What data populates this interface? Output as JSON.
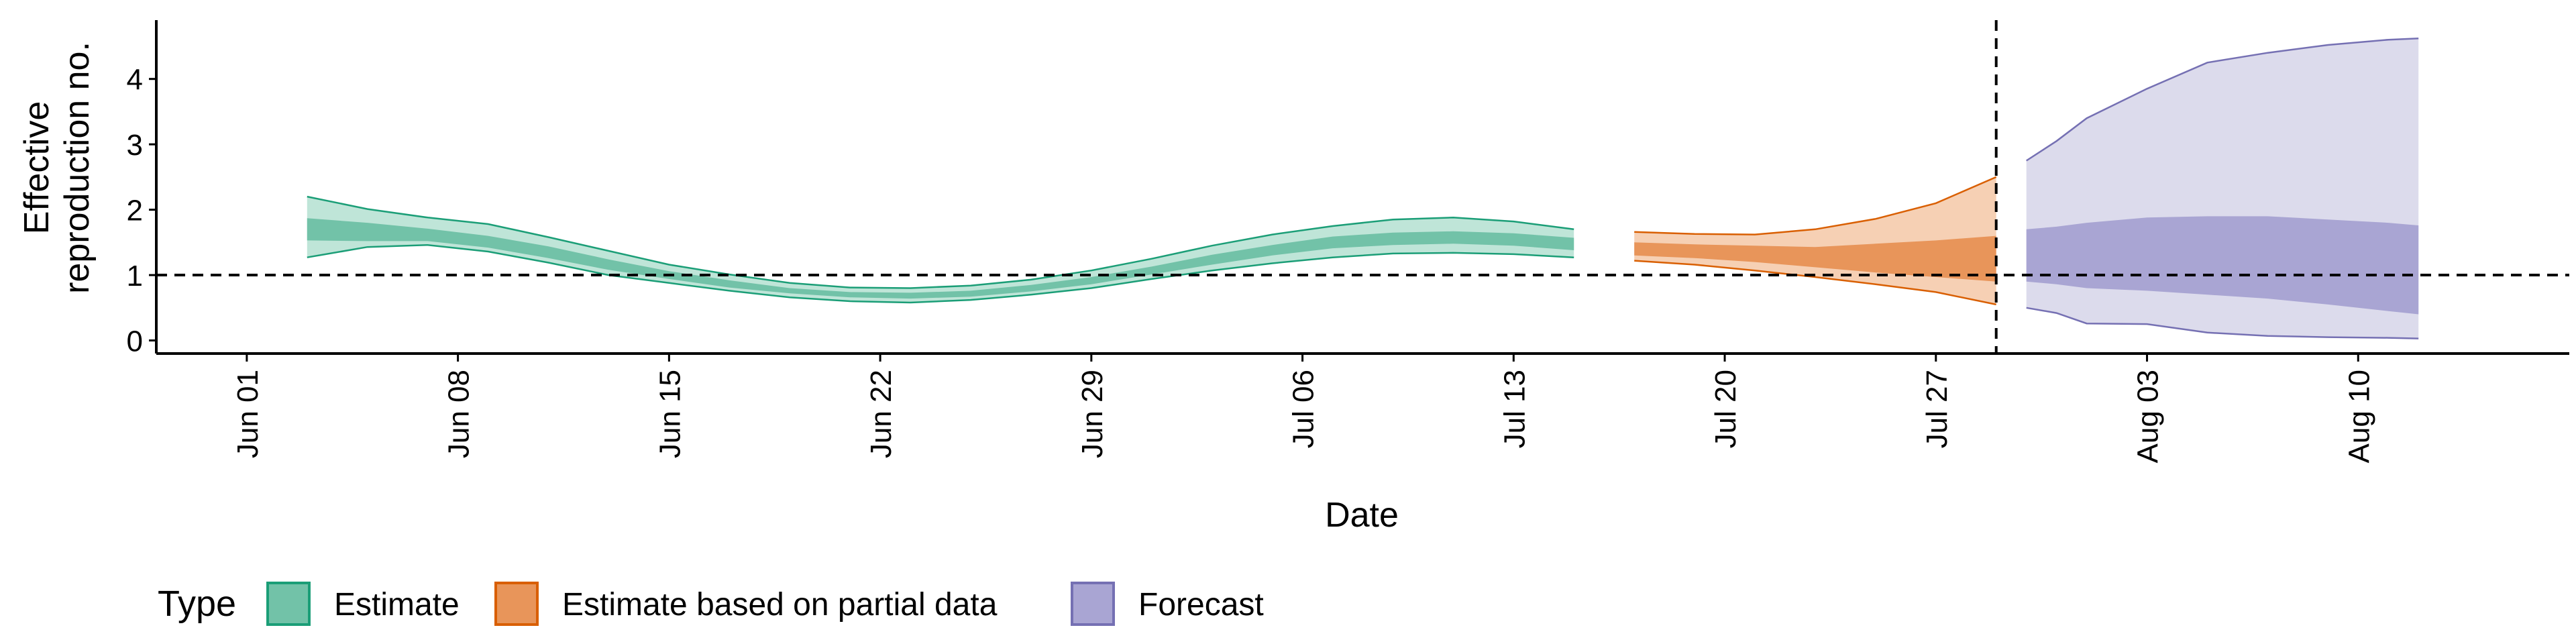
{
  "chart_data": {
    "type": "area",
    "xlabel": "Date",
    "ylabel_lines": [
      "Effective",
      "reproduction no."
    ],
    "x_tick_labels": [
      "Jun 01",
      "Jun 08",
      "Jun 15",
      "Jun 22",
      "Jun 29",
      "Jul 06",
      "Jul 13",
      "Jul 20",
      "Jul 27",
      "Aug 03",
      "Aug 10"
    ],
    "x_tick_dates": [
      "2020-06-01",
      "2020-06-08",
      "2020-06-15",
      "2020-06-22",
      "2020-06-29",
      "2020-07-06",
      "2020-07-13",
      "2020-07-20",
      "2020-07-27",
      "2020-08-03",
      "2020-08-10"
    ],
    "xlim": [
      "2020-05-29",
      "2020-08-17"
    ],
    "y_ticks": [
      0,
      1,
      2,
      3,
      4
    ],
    "ylim": [
      -0.2,
      4.9
    ],
    "reference_hline": 1,
    "forecast_start_vline": "2020-07-29",
    "legend_position": "bottom",
    "legend_title": "Type",
    "series": [
      {
        "name": "Estimate",
        "fill_outer": "#bfe5d8",
        "fill_inner": "#72c2a8",
        "stroke": "#1b9e77",
        "points": [
          {
            "date": "2020-06-03",
            "lo90": 1.27,
            "lo50": 1.53,
            "median": 1.72,
            "hi50": 1.87,
            "hi90": 2.2
          },
          {
            "date": "2020-06-05",
            "lo90": 1.43,
            "lo50": 1.52,
            "median": 1.68,
            "hi50": 1.8,
            "hi90": 2.01
          },
          {
            "date": "2020-06-07",
            "lo90": 1.46,
            "lo50": 1.52,
            "median": 1.63,
            "hi50": 1.71,
            "hi90": 1.88
          },
          {
            "date": "2020-06-09",
            "lo90": 1.36,
            "lo50": 1.42,
            "median": 1.52,
            "hi50": 1.6,
            "hi90": 1.78
          },
          {
            "date": "2020-06-11",
            "lo90": 1.19,
            "lo50": 1.26,
            "median": 1.36,
            "hi50": 1.44,
            "hi90": 1.58
          },
          {
            "date": "2020-06-13",
            "lo90": 1.0,
            "lo50": 1.08,
            "median": 1.17,
            "hi50": 1.24,
            "hi90": 1.37
          },
          {
            "date": "2020-06-15",
            "lo90": 0.88,
            "lo50": 0.94,
            "median": 1.01,
            "hi50": 1.06,
            "hi90": 1.16
          },
          {
            "date": "2020-06-17",
            "lo90": 0.76,
            "lo50": 0.81,
            "median": 0.87,
            "hi50": 0.92,
            "hi90": 1.01
          },
          {
            "date": "2020-06-19",
            "lo90": 0.66,
            "lo50": 0.72,
            "median": 0.76,
            "hi50": 0.8,
            "hi90": 0.88
          },
          {
            "date": "2020-06-21",
            "lo90": 0.6,
            "lo50": 0.66,
            "median": 0.7,
            "hi50": 0.74,
            "hi90": 0.81
          },
          {
            "date": "2020-06-23",
            "lo90": 0.58,
            "lo50": 0.64,
            "median": 0.69,
            "hi50": 0.73,
            "hi90": 0.8
          },
          {
            "date": "2020-06-25",
            "lo90": 0.62,
            "lo50": 0.67,
            "median": 0.72,
            "hi50": 0.76,
            "hi90": 0.84
          },
          {
            "date": "2020-06-27",
            "lo90": 0.7,
            "lo50": 0.75,
            "median": 0.8,
            "hi50": 0.85,
            "hi90": 0.93
          },
          {
            "date": "2020-06-29",
            "lo90": 0.8,
            "lo50": 0.86,
            "median": 0.92,
            "hi50": 0.97,
            "hi90": 1.07
          },
          {
            "date": "2020-07-01",
            "lo90": 0.94,
            "lo50": 1.01,
            "median": 1.07,
            "hi50": 1.13,
            "hi90": 1.25
          },
          {
            "date": "2020-07-03",
            "lo90": 1.07,
            "lo50": 1.16,
            "median": 1.24,
            "hi50": 1.31,
            "hi90": 1.45
          },
          {
            "date": "2020-07-05",
            "lo90": 1.18,
            "lo50": 1.3,
            "median": 1.38,
            "hi50": 1.46,
            "hi90": 1.62
          },
          {
            "date": "2020-07-07",
            "lo90": 1.27,
            "lo50": 1.41,
            "median": 1.5,
            "hi50": 1.59,
            "hi90": 1.75
          },
          {
            "date": "2020-07-09",
            "lo90": 1.33,
            "lo50": 1.46,
            "median": 1.56,
            "hi50": 1.65,
            "hi90": 1.85
          },
          {
            "date": "2020-07-11",
            "lo90": 1.34,
            "lo50": 1.48,
            "median": 1.58,
            "hi50": 1.67,
            "hi90": 1.88
          },
          {
            "date": "2020-07-13",
            "lo90": 1.32,
            "lo50": 1.45,
            "median": 1.55,
            "hi50": 1.64,
            "hi90": 1.82
          },
          {
            "date": "2020-07-15",
            "lo90": 1.27,
            "lo50": 1.38,
            "median": 1.47,
            "hi50": 1.57,
            "hi90": 1.7
          }
        ]
      },
      {
        "name": "Estimate based on partial data",
        "fill_outer": "#f6d0b4",
        "fill_inner": "#e8955a",
        "stroke": "#d95f02",
        "points": [
          {
            "date": "2020-07-17",
            "lo90": 1.22,
            "lo50": 1.3,
            "median": 1.4,
            "hi50": 1.5,
            "hi90": 1.66
          },
          {
            "date": "2020-07-19",
            "lo90": 1.16,
            "lo50": 1.26,
            "median": 1.37,
            "hi50": 1.47,
            "hi90": 1.63
          },
          {
            "date": "2020-07-21",
            "lo90": 1.07,
            "lo50": 1.2,
            "median": 1.33,
            "hi50": 1.45,
            "hi90": 1.62
          },
          {
            "date": "2020-07-23",
            "lo90": 0.97,
            "lo50": 1.12,
            "median": 1.27,
            "hi50": 1.43,
            "hi90": 1.7
          },
          {
            "date": "2020-07-25",
            "lo90": 0.86,
            "lo50": 1.04,
            "median": 1.23,
            "hi50": 1.48,
            "hi90": 1.86
          },
          {
            "date": "2020-07-27",
            "lo90": 0.74,
            "lo50": 0.97,
            "median": 1.2,
            "hi50": 1.53,
            "hi90": 2.1
          },
          {
            "date": "2020-07-29",
            "lo90": 0.55,
            "lo50": 0.9,
            "median": 1.18,
            "hi50": 1.6,
            "hi90": 2.5
          }
        ]
      },
      {
        "name": "Forecast",
        "fill_outer": "#dcdbec",
        "fill_inner": "#a9a5d3",
        "stroke": "#7570b3",
        "points": [
          {
            "date": "2020-07-30",
            "lo90": 0.5,
            "lo50": 0.9,
            "median": 1.3,
            "hi50": 1.7,
            "hi90": 2.75
          },
          {
            "date": "2020-07-31",
            "lo90": 0.42,
            "lo50": 0.86,
            "median": 1.3,
            "hi50": 1.74,
            "hi90": 3.05
          },
          {
            "date": "2020-08-01",
            "lo90": 0.26,
            "lo50": 0.8,
            "median": 1.3,
            "hi50": 1.8,
            "hi90": 3.4
          },
          {
            "date": "2020-08-03",
            "lo90": 0.25,
            "lo50": 0.76,
            "median": 1.32,
            "hi50": 1.88,
            "hi90": 3.85
          },
          {
            "date": "2020-08-05",
            "lo90": 0.12,
            "lo50": 0.7,
            "median": 1.3,
            "hi50": 1.9,
            "hi90": 4.25
          },
          {
            "date": "2020-08-07",
            "lo90": 0.07,
            "lo50": 0.64,
            "median": 1.28,
            "hi50": 1.9,
            "hi90": 4.4
          },
          {
            "date": "2020-08-09",
            "lo90": 0.05,
            "lo50": 0.55,
            "median": 1.23,
            "hi50": 1.85,
            "hi90": 4.52
          },
          {
            "date": "2020-08-11",
            "lo90": 0.04,
            "lo50": 0.45,
            "median": 1.15,
            "hi50": 1.8,
            "hi90": 4.6
          },
          {
            "date": "2020-08-12",
            "lo90": 0.03,
            "lo50": 0.4,
            "median": 1.1,
            "hi50": 1.76,
            "hi90": 4.62
          }
        ]
      }
    ]
  }
}
